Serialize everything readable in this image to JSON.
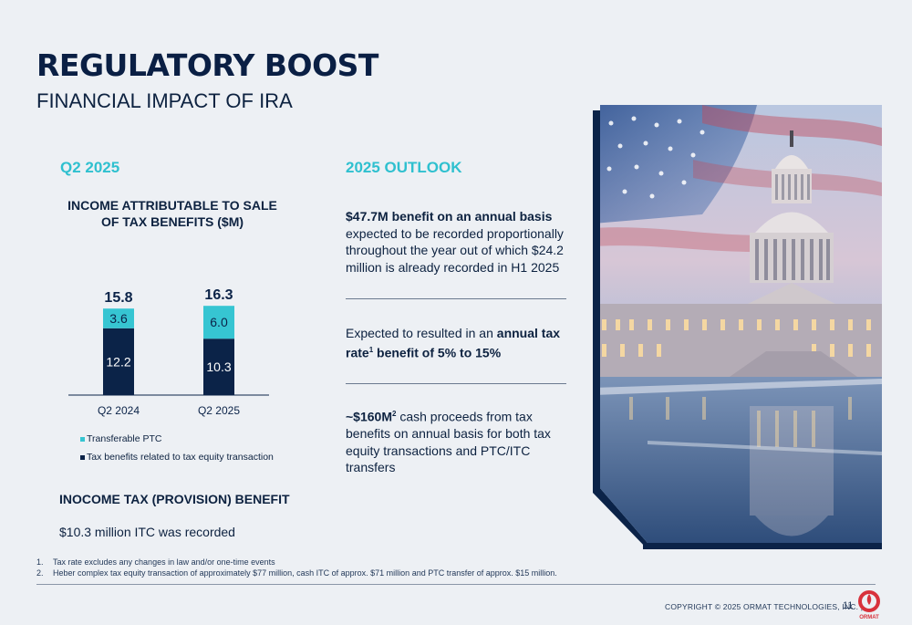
{
  "header": {
    "title": "REGULATORY BOOST",
    "subtitle": "FINANCIAL IMPACT OF IRA"
  },
  "left": {
    "section_heading": "Q2 2025",
    "chart_title_line1": "INCOME ATTRIBUTABLE TO SALE",
    "chart_title_line2": "OF TAX BENEFITS ($M)",
    "subheading": "INOCOME TAX (PROVISION) BENEFIT",
    "subtext": "$10.3 million ITC was  recorded"
  },
  "chart_data": {
    "type": "bar",
    "stacked": true,
    "title": "INCOME ATTRIBUTABLE TO SALE OF TAX BENEFITS ($M)",
    "categories": [
      "Q2 2024",
      "Q2 2025"
    ],
    "totals": [
      "15.8",
      "16.3"
    ],
    "series": [
      {
        "name": "Tax benefits related to tax equity transaction",
        "values": [
          12.2,
          10.3
        ],
        "labels": [
          "12.2",
          "10.3"
        ],
        "color": "#0b2348"
      },
      {
        "name": "Transferable PTC",
        "values": [
          3.6,
          6.0
        ],
        "labels": [
          "3.6",
          "6.0"
        ],
        "color": "#36c5d2"
      }
    ],
    "ylim": [
      0,
      17
    ],
    "legend_position": "bottom-left",
    "grid": false
  },
  "legend": {
    "items": [
      {
        "label": "Transferable PTC",
        "color": "#36c5d2"
      },
      {
        "label": "Tax benefits related to tax equity transaction",
        "color": "#0b2348"
      }
    ]
  },
  "outlook": {
    "heading": "2025 OUTLOOK",
    "item1_bold": "$47.7M benefit on an annual basis",
    "item1_text": "expected to be recorded proportionally throughout the year out of which $24.2 million is already recorded in H1 2025",
    "item2_text": "Expected to resulted in an ",
    "item2_bold_a": "annual tax",
    "item2_bold_b": "rate",
    "item2_sup": "1",
    "item2_bold_c": " benefit of 5% to 15%",
    "item3_bold": "~$160M",
    "item3_sup": "2",
    "item3_text": " cash proceeds from tax benefits on annual basis for both tax equity transactions and PTC/ITC transfers"
  },
  "footnotes": [
    {
      "num": "1.",
      "text": "Tax rate excludes any changes in law and/or one-time events"
    },
    {
      "num": "2.",
      "text": "Heber complex tax equity transaction of approximately $77 million, cash ITC of approx. $71 million and PTC transfer of approx. $15 million."
    }
  ],
  "footer": {
    "copyright": "COPYRIGHT © 2025 ORMAT TECHNOLOGIES, INC.  |",
    "page_number": "11",
    "logo_text": "ORMAT"
  },
  "colors": {
    "accent_teal": "#2fc0cf",
    "navy": "#0b2348",
    "logo_red": "#d8323c"
  }
}
